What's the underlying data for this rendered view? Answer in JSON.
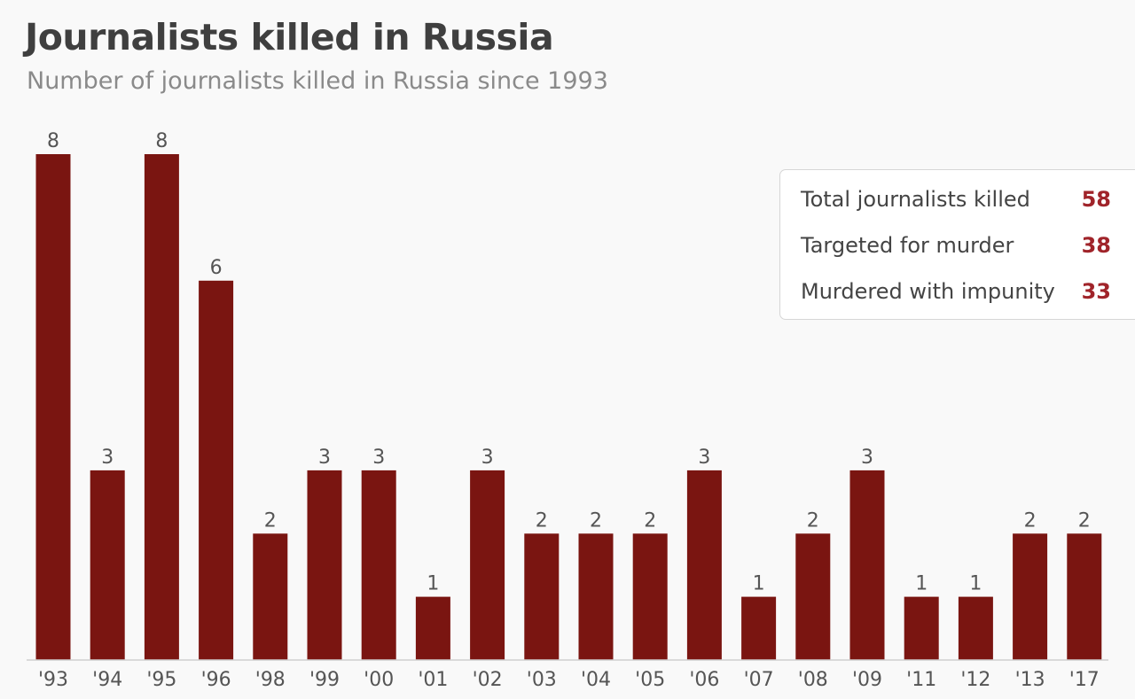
{
  "chart_data": {
    "type": "bar",
    "title": "Journalists killed in Russia",
    "subtitle": "Number of journalists killed in Russia since 1993",
    "categories": [
      "'93",
      "'94",
      "'95",
      "'96",
      "'98",
      "'99",
      "'00",
      "'01",
      "'02",
      "'03",
      "'04",
      "'05",
      "'06",
      "'07",
      "'08",
      "'09",
      "'11",
      "'12",
      "'13",
      "'17"
    ],
    "values": [
      8,
      3,
      8,
      6,
      2,
      3,
      3,
      1,
      3,
      2,
      2,
      2,
      3,
      1,
      2,
      3,
      1,
      1,
      2,
      2
    ],
    "ylim": [
      0,
      8
    ],
    "grid": false,
    "bar_color": "#7a1511",
    "data_labels": true
  },
  "legend_box": {
    "rows": [
      {
        "label": "Total journalists killed",
        "value": "58"
      },
      {
        "label": "Targeted for murder",
        "value": "38"
      },
      {
        "label": "Murdered with impunity",
        "value": "33"
      }
    ],
    "value_color": "#a0242a"
  }
}
